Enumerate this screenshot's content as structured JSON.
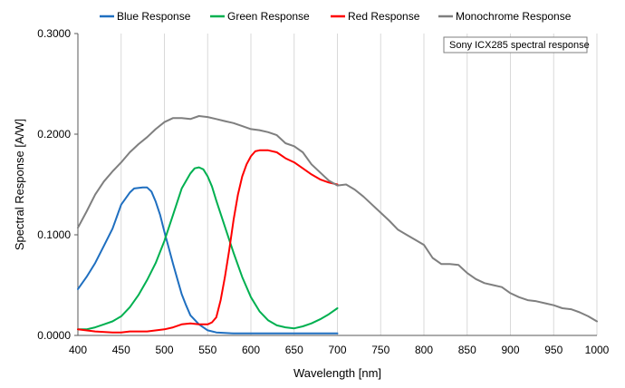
{
  "chart_data": {
    "type": "line",
    "annotation": "Sony ICX285 spectral response",
    "xlabel": "Wavelength [nm]",
    "ylabel": "Spectral Response [A/W]",
    "xlim": [
      400,
      1000
    ],
    "ylim": [
      0,
      0.3
    ],
    "x_ticks": [
      "400",
      "450",
      "500",
      "550",
      "600",
      "650",
      "700",
      "750",
      "800",
      "850",
      "900",
      "950",
      "1000"
    ],
    "y_ticks": [
      "0.0000",
      "0.1000",
      "0.2000",
      "0.3000"
    ],
    "grid": "vertical",
    "legend_position": "top",
    "series": [
      {
        "name": "Blue Response",
        "color": "#1f6fc0",
        "points": [
          [
            400,
            0.046
          ],
          [
            410,
            0.058
          ],
          [
            420,
            0.072
          ],
          [
            430,
            0.089
          ],
          [
            440,
            0.106
          ],
          [
            445,
            0.118
          ],
          [
            450,
            0.13
          ],
          [
            460,
            0.142
          ],
          [
            465,
            0.146
          ],
          [
            475,
            0.147
          ],
          [
            480,
            0.147
          ],
          [
            485,
            0.143
          ],
          [
            490,
            0.133
          ],
          [
            495,
            0.12
          ],
          [
            500,
            0.103
          ],
          [
            505,
            0.087
          ],
          [
            510,
            0.071
          ],
          [
            515,
            0.056
          ],
          [
            520,
            0.041
          ],
          [
            525,
            0.03
          ],
          [
            530,
            0.02
          ],
          [
            540,
            0.011
          ],
          [
            550,
            0.005
          ],
          [
            560,
            0.003
          ],
          [
            580,
            0.002
          ],
          [
            600,
            0.002
          ],
          [
            650,
            0.002
          ],
          [
            700,
            0.002
          ]
        ]
      },
      {
        "name": "Green Response",
        "color": "#00b050",
        "points": [
          [
            400,
            0.006
          ],
          [
            410,
            0.006
          ],
          [
            420,
            0.008
          ],
          [
            430,
            0.011
          ],
          [
            440,
            0.014
          ],
          [
            450,
            0.019
          ],
          [
            460,
            0.028
          ],
          [
            470,
            0.04
          ],
          [
            480,
            0.055
          ],
          [
            490,
            0.072
          ],
          [
            500,
            0.094
          ],
          [
            510,
            0.12
          ],
          [
            520,
            0.146
          ],
          [
            530,
            0.161
          ],
          [
            535,
            0.166
          ],
          [
            540,
            0.167
          ],
          [
            545,
            0.165
          ],
          [
            550,
            0.158
          ],
          [
            555,
            0.148
          ],
          [
            560,
            0.134
          ],
          [
            570,
            0.108
          ],
          [
            580,
            0.082
          ],
          [
            590,
            0.058
          ],
          [
            600,
            0.038
          ],
          [
            610,
            0.024
          ],
          [
            620,
            0.015
          ],
          [
            630,
            0.01
          ],
          [
            640,
            0.008
          ],
          [
            650,
            0.007
          ],
          [
            660,
            0.009
          ],
          [
            670,
            0.012
          ],
          [
            680,
            0.016
          ],
          [
            690,
            0.021
          ],
          [
            700,
            0.027
          ]
        ]
      },
      {
        "name": "Red Response",
        "color": "#ff0000",
        "points": [
          [
            400,
            0.006
          ],
          [
            420,
            0.004
          ],
          [
            440,
            0.003
          ],
          [
            450,
            0.003
          ],
          [
            460,
            0.004
          ],
          [
            480,
            0.004
          ],
          [
            500,
            0.006
          ],
          [
            510,
            0.008
          ],
          [
            520,
            0.011
          ],
          [
            530,
            0.012
          ],
          [
            540,
            0.011
          ],
          [
            550,
            0.011
          ],
          [
            555,
            0.013
          ],
          [
            560,
            0.018
          ],
          [
            565,
            0.035
          ],
          [
            570,
            0.058
          ],
          [
            575,
            0.085
          ],
          [
            580,
            0.115
          ],
          [
            585,
            0.14
          ],
          [
            590,
            0.158
          ],
          [
            595,
            0.17
          ],
          [
            600,
            0.178
          ],
          [
            605,
            0.183
          ],
          [
            610,
            0.184
          ],
          [
            620,
            0.184
          ],
          [
            630,
            0.182
          ],
          [
            640,
            0.176
          ],
          [
            650,
            0.172
          ],
          [
            660,
            0.166
          ],
          [
            670,
            0.16
          ],
          [
            680,
            0.155
          ],
          [
            690,
            0.152
          ],
          [
            700,
            0.15
          ]
        ]
      },
      {
        "name": "Monochrome Response",
        "color": "#7f7f7f",
        "points": [
          [
            400,
            0.107
          ],
          [
            410,
            0.123
          ],
          [
            420,
            0.14
          ],
          [
            430,
            0.153
          ],
          [
            440,
            0.163
          ],
          [
            450,
            0.172
          ],
          [
            460,
            0.182
          ],
          [
            470,
            0.19
          ],
          [
            480,
            0.197
          ],
          [
            490,
            0.205
          ],
          [
            500,
            0.212
          ],
          [
            510,
            0.216
          ],
          [
            520,
            0.216
          ],
          [
            530,
            0.215
          ],
          [
            540,
            0.218
          ],
          [
            550,
            0.217
          ],
          [
            560,
            0.215
          ],
          [
            570,
            0.213
          ],
          [
            580,
            0.211
          ],
          [
            590,
            0.208
          ],
          [
            600,
            0.205
          ],
          [
            610,
            0.204
          ],
          [
            620,
            0.202
          ],
          [
            630,
            0.199
          ],
          [
            640,
            0.191
          ],
          [
            650,
            0.188
          ],
          [
            660,
            0.182
          ],
          [
            670,
            0.17
          ],
          [
            680,
            0.162
          ],
          [
            690,
            0.154
          ],
          [
            700,
            0.149
          ],
          [
            710,
            0.15
          ],
          [
            720,
            0.145
          ],
          [
            730,
            0.138
          ],
          [
            740,
            0.13
          ],
          [
            750,
            0.122
          ],
          [
            760,
            0.114
          ],
          [
            770,
            0.105
          ],
          [
            780,
            0.1
          ],
          [
            790,
            0.095
          ],
          [
            800,
            0.09
          ],
          [
            810,
            0.077
          ],
          [
            820,
            0.071
          ],
          [
            830,
            0.071
          ],
          [
            840,
            0.07
          ],
          [
            850,
            0.062
          ],
          [
            860,
            0.056
          ],
          [
            870,
            0.052
          ],
          [
            880,
            0.05
          ],
          [
            890,
            0.048
          ],
          [
            900,
            0.042
          ],
          [
            910,
            0.038
          ],
          [
            920,
            0.035
          ],
          [
            930,
            0.034
          ],
          [
            940,
            0.032
          ],
          [
            950,
            0.03
          ],
          [
            960,
            0.027
          ],
          [
            970,
            0.026
          ],
          [
            980,
            0.023
          ],
          [
            990,
            0.019
          ],
          [
            1000,
            0.014
          ]
        ]
      }
    ]
  }
}
